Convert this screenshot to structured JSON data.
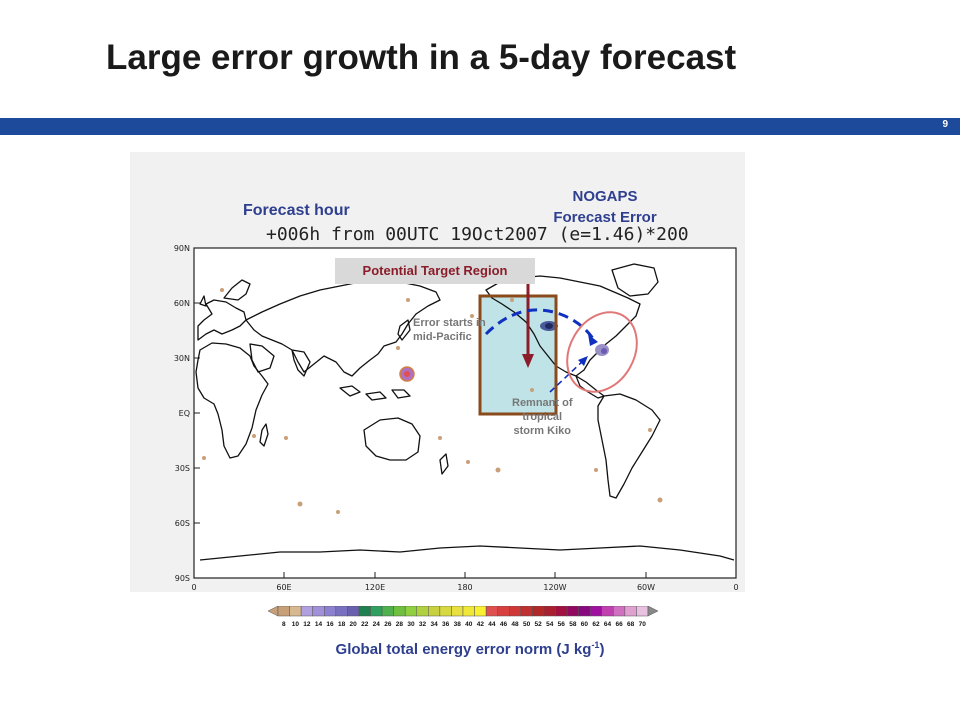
{
  "slide": {
    "title": "Large error growth in a 5-day forecast",
    "number": "9"
  },
  "map": {
    "forecast_hour_label": "Forecast hour",
    "nogaps_line1": "NOGAPS",
    "nogaps_line2": "Forecast Error",
    "run_info": "+006h from 00UTC 19Oct2007 (e=1.46)*200",
    "target_region": "Potential Target Region",
    "note_error_line1": "Error starts in",
    "note_error_line2": "mid-Pacific",
    "note_remnant_line1": "Remnant of",
    "note_remnant_line2": "tropical",
    "note_remnant_line3": "storm Kiko",
    "lat_labels": [
      "90N",
      "60N",
      "30N",
      "EQ",
      "30S",
      "60S",
      "90S"
    ],
    "lon_labels": [
      "0",
      "60E",
      "120E",
      "180",
      "120W",
      "60W",
      "0"
    ]
  },
  "colorbar": {
    "ticks": [
      "8",
      "10",
      "12",
      "14",
      "16",
      "18",
      "20",
      "22",
      "24",
      "26",
      "28",
      "30",
      "32",
      "34",
      "36",
      "38",
      "40",
      "42",
      "44",
      "46",
      "48",
      "50",
      "52",
      "54",
      "56",
      "58",
      "60",
      "62",
      "64",
      "66",
      "68",
      "70"
    ],
    "label_text": "Global total energy error norm (J kg",
    "label_sup": "-1",
    "label_end": ")",
    "colors": [
      "#c8a078",
      "#d8b890",
      "#b0a0e0",
      "#a090d8",
      "#8c80d0",
      "#7870c0",
      "#6a60b0",
      "#208050",
      "#30a060",
      "#50b050",
      "#70c040",
      "#90d040",
      "#b0d040",
      "#c8d040",
      "#d8d840",
      "#e8e040",
      "#f0e838",
      "#f8f030",
      "#e05050",
      "#d84040",
      "#d03838",
      "#c03030",
      "#b02828",
      "#a82030",
      "#a01040",
      "#900860",
      "#880880",
      "#a010a0",
      "#c040b0",
      "#d070c0",
      "#e0a0d0",
      "#e8c0e0"
    ]
  }
}
